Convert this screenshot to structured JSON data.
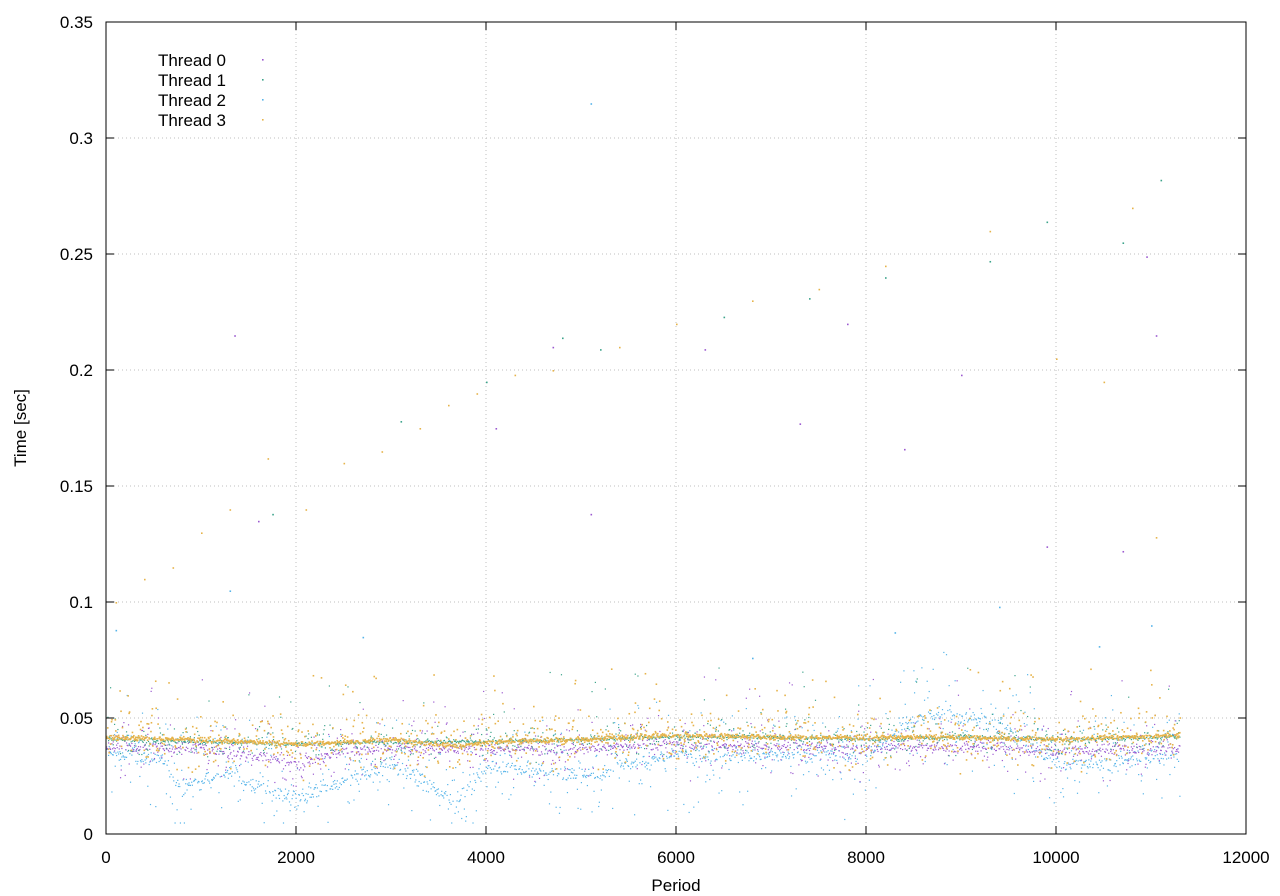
{
  "chart_data": {
    "type": "scatter",
    "title": "",
    "xlabel": "Period",
    "ylabel": "Time [sec]",
    "xlim": [
      0,
      12000
    ],
    "ylim": [
      0,
      0.35
    ],
    "x_ticks": [
      0,
      2000,
      4000,
      6000,
      8000,
      10000,
      12000
    ],
    "x_tick_labels": [
      "0",
      "2000",
      "4000",
      "6000",
      "8000",
      "10000",
      "12000"
    ],
    "y_ticks": [
      0,
      0.05,
      0.1,
      0.15,
      0.2,
      0.25,
      0.3,
      0.35
    ],
    "y_tick_labels": [
      "0",
      "0.05",
      "0.1",
      "0.15",
      "0.2",
      "0.25",
      "0.3",
      "0.35"
    ],
    "grid": true,
    "legend_position": "top-left",
    "x_range_of_data": [
      0,
      11300
    ],
    "series": [
      {
        "name": "Thread 0",
        "color": "#9b59d0",
        "baseline_points": [
          [
            0,
            0.038
          ],
          [
            1000,
            0.037
          ],
          [
            2000,
            0.031
          ],
          [
            2500,
            0.036
          ],
          [
            3000,
            0.037
          ],
          [
            4000,
            0.037
          ],
          [
            5000,
            0.037
          ],
          [
            6000,
            0.039
          ],
          [
            7000,
            0.038
          ],
          [
            8000,
            0.037
          ],
          [
            9000,
            0.038
          ],
          [
            10000,
            0.036
          ],
          [
            11300,
            0.037
          ]
        ],
        "outliers": [
          [
            1350,
            0.215
          ],
          [
            1600,
            0.135
          ],
          [
            4100,
            0.175
          ],
          [
            4700,
            0.21
          ],
          [
            5100,
            0.138
          ],
          [
            6300,
            0.209
          ],
          [
            7300,
            0.177
          ],
          [
            7800,
            0.22
          ],
          [
            8400,
            0.166
          ],
          [
            9000,
            0.198
          ],
          [
            9900,
            0.124
          ],
          [
            10700,
            0.122
          ],
          [
            10950,
            0.249
          ],
          [
            11050,
            0.215
          ]
        ]
      },
      {
        "name": "Thread 1",
        "color": "#3ba38a",
        "baseline_points": [
          [
            0,
            0.041
          ],
          [
            1000,
            0.04
          ],
          [
            2000,
            0.039
          ],
          [
            3000,
            0.04
          ],
          [
            4000,
            0.04
          ],
          [
            5000,
            0.041
          ],
          [
            6000,
            0.042
          ],
          [
            7000,
            0.042
          ],
          [
            8000,
            0.041
          ],
          [
            9000,
            0.042
          ],
          [
            10000,
            0.041
          ],
          [
            11300,
            0.042
          ]
        ],
        "outliers": [
          [
            1750,
            0.138
          ],
          [
            3100,
            0.178
          ],
          [
            4000,
            0.195
          ],
          [
            4800,
            0.214
          ],
          [
            5200,
            0.209
          ],
          [
            6500,
            0.223
          ],
          [
            7400,
            0.231
          ],
          [
            8200,
            0.24
          ],
          [
            9300,
            0.247
          ],
          [
            9900,
            0.264
          ],
          [
            10700,
            0.255
          ],
          [
            11100,
            0.282
          ]
        ]
      },
      {
        "name": "Thread 2",
        "color": "#56b4e9",
        "baseline_points": [
          [
            0,
            0.035
          ],
          [
            600,
            0.032
          ],
          [
            800,
            0.02
          ],
          [
            1200,
            0.027
          ],
          [
            2000,
            0.015
          ],
          [
            2200,
            0.018
          ],
          [
            3000,
            0.031
          ],
          [
            3700,
            0.014
          ],
          [
            4000,
            0.03
          ],
          [
            5000,
            0.025
          ],
          [
            6000,
            0.035
          ],
          [
            7000,
            0.034
          ],
          [
            8000,
            0.035
          ],
          [
            8600,
            0.052
          ],
          [
            9400,
            0.048
          ],
          [
            10000,
            0.03
          ],
          [
            10400,
            0.031
          ],
          [
            11300,
            0.034
          ]
        ],
        "outliers": [
          [
            100,
            0.088
          ],
          [
            1300,
            0.105
          ],
          [
            2700,
            0.085
          ],
          [
            5100,
            0.315
          ],
          [
            6800,
            0.076
          ],
          [
            8300,
            0.087
          ],
          [
            9400,
            0.098
          ],
          [
            10450,
            0.081
          ],
          [
            11000,
            0.09
          ]
        ]
      },
      {
        "name": "Thread 3",
        "color": "#e6b34a",
        "baseline_points": [
          [
            0,
            0.042
          ],
          [
            1000,
            0.041
          ],
          [
            2000,
            0.039
          ],
          [
            3000,
            0.041
          ],
          [
            3700,
            0.038
          ],
          [
            4000,
            0.04
          ],
          [
            5000,
            0.041
          ],
          [
            6000,
            0.043
          ],
          [
            7000,
            0.042
          ],
          [
            8000,
            0.042
          ],
          [
            9000,
            0.042
          ],
          [
            10000,
            0.041
          ],
          [
            11300,
            0.043
          ]
        ],
        "outliers": [
          [
            100,
            0.1
          ],
          [
            400,
            0.11
          ],
          [
            700,
            0.115
          ],
          [
            1000,
            0.13
          ],
          [
            1300,
            0.14
          ],
          [
            1700,
            0.162
          ],
          [
            2100,
            0.14
          ],
          [
            2500,
            0.16
          ],
          [
            2900,
            0.165
          ],
          [
            3300,
            0.175
          ],
          [
            3600,
            0.185
          ],
          [
            3900,
            0.19
          ],
          [
            4300,
            0.198
          ],
          [
            4700,
            0.2
          ],
          [
            5400,
            0.21
          ],
          [
            6000,
            0.22
          ],
          [
            6800,
            0.23
          ],
          [
            7500,
            0.235
          ],
          [
            8200,
            0.245
          ],
          [
            9300,
            0.26
          ],
          [
            10000,
            0.205
          ],
          [
            10500,
            0.195
          ],
          [
            10800,
            0.27
          ],
          [
            11050,
            0.128
          ]
        ]
      }
    ]
  }
}
